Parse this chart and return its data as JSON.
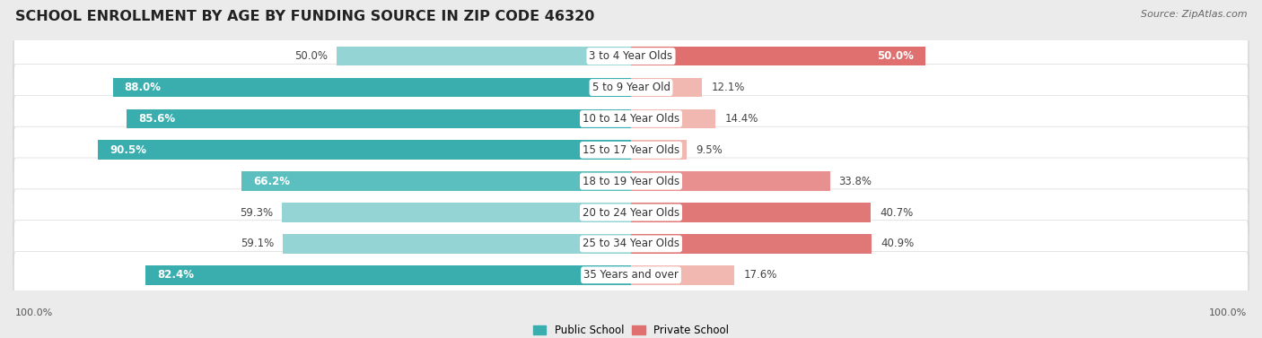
{
  "title": "SCHOOL ENROLLMENT BY AGE BY FUNDING SOURCE IN ZIP CODE 46320",
  "source": "Source: ZipAtlas.com",
  "categories": [
    "3 to 4 Year Olds",
    "5 to 9 Year Old",
    "10 to 14 Year Olds",
    "15 to 17 Year Olds",
    "18 to 19 Year Olds",
    "20 to 24 Year Olds",
    "25 to 34 Year Olds",
    "35 Years and over"
  ],
  "public_values": [
    50.0,
    88.0,
    85.6,
    90.5,
    66.2,
    59.3,
    59.1,
    82.4
  ],
  "private_values": [
    50.0,
    12.1,
    14.4,
    9.5,
    33.8,
    40.7,
    40.9,
    17.6
  ],
  "public_colors": [
    "#94D4D4",
    "#3AAEAE",
    "#3AAEAE",
    "#3AAEAE",
    "#5BBFBF",
    "#94D4D4",
    "#94D4D4",
    "#3AAEAE"
  ],
  "private_colors": [
    "#E07070",
    "#F0B8B0",
    "#F0B8B0",
    "#F0B8B0",
    "#E89090",
    "#E07878",
    "#E07878",
    "#F0B8B0"
  ],
  "pub_label_white": [
    false,
    true,
    true,
    true,
    true,
    false,
    false,
    true
  ],
  "priv_label_white": [
    true,
    false,
    false,
    false,
    false,
    false,
    false,
    false
  ],
  "background_color": "#EBEBEB",
  "row_bg": "#FFFFFF",
  "row_edge": "#D0D0D0",
  "legend_public": "Public School",
  "legend_private": "Private School",
  "public_color_swatch": "#3AAEAE",
  "private_color_swatch": "#E07070",
  "x_label": "100.0%",
  "title_fontsize": 11.5,
  "value_fontsize": 8.5,
  "category_fontsize": 8.5,
  "source_fontsize": 8,
  "legend_fontsize": 8.5
}
